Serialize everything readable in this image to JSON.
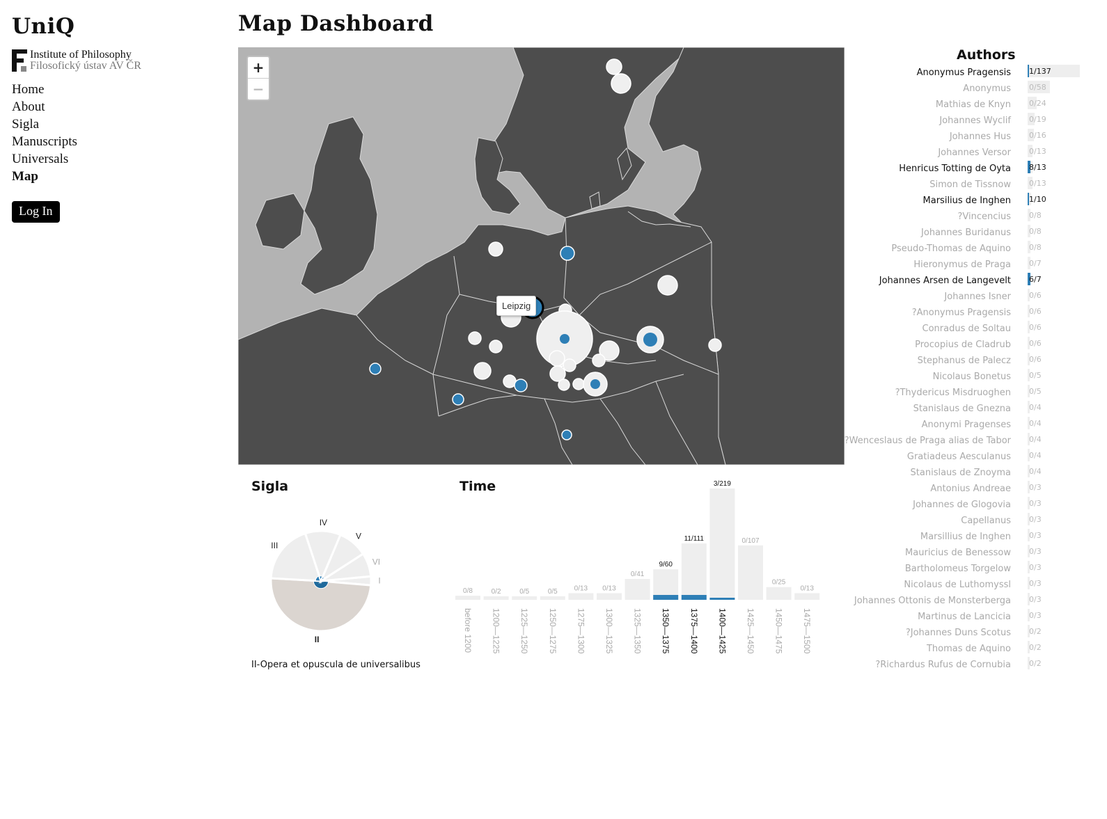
{
  "brand": "UniQ",
  "institute": {
    "line1": "Institute of Philosophy",
    "line2": "Filosofický ústav AV ČR",
    "logo_letter": "F"
  },
  "nav": [
    {
      "label": "Home",
      "active": false
    },
    {
      "label": "About",
      "active": false
    },
    {
      "label": "Sigla",
      "active": false
    },
    {
      "label": "Manuscripts",
      "active": false
    },
    {
      "label": "Universals",
      "active": false
    },
    {
      "label": "Map",
      "active": true
    }
  ],
  "login_label": "Log In",
  "page_title": "Map Dashboard",
  "map": {
    "zoom_in": "+",
    "zoom_out": "−",
    "tooltip": "Leipzig",
    "colors": {
      "land": "#4d4d4d",
      "sea": "#b3b3b3",
      "border": "#d9d9d9",
      "marker": "#efefef",
      "selected": "#2e7fb6"
    }
  },
  "sigla": {
    "title": "Sigla",
    "caption": "II-Opera et opuscula de universalibus",
    "slices": [
      {
        "label": "I",
        "value": 3,
        "selected": 0,
        "active": false
      },
      {
        "label": "II",
        "value": 52,
        "selected": 9,
        "active": true
      },
      {
        "label": "III",
        "value": 20,
        "selected": 3,
        "active": false
      },
      {
        "label": "IV",
        "value": 12,
        "selected": 2,
        "active": false
      },
      {
        "label": "V",
        "value": 10,
        "selected": 1,
        "active": false
      },
      {
        "label": "VI",
        "value": 8,
        "selected": 0,
        "active": false
      }
    ]
  },
  "time": {
    "title": "Time",
    "chart_data": {
      "type": "bar",
      "categories": [
        "before 1200",
        "1200—1225",
        "1225—1250",
        "1250—1275",
        "1275—1300",
        "1300—1325",
        "1325—1350",
        "1350—1375",
        "1375—1400",
        "1400—1425",
        "1425—1450",
        "1450—1475",
        "1475—1500"
      ],
      "series": [
        {
          "values": [
            8,
            2,
            5,
            5,
            13,
            13,
            41,
            60,
            111,
            219,
            107,
            25,
            13
          ]
        },
        {
          "values": [
            0,
            0,
            0,
            0,
            0,
            0,
            0,
            9,
            11,
            3,
            0,
            0,
            0
          ]
        }
      ],
      "labels": [
        "0/8",
        "0/2",
        "0/5",
        "0/5",
        "0/13",
        "0/13",
        "0/41",
        "9/60",
        "11/111",
        "3/219",
        "0/107",
        "0/25",
        "0/13"
      ]
    }
  },
  "authors": {
    "title": "Authors",
    "items": [
      {
        "name": "Anonymus Pragensis",
        "count": "1/137",
        "sel": 1,
        "total": 137
      },
      {
        "name": "Anonymus",
        "count": "0/58",
        "sel": 0,
        "total": 58
      },
      {
        "name": "Mathias de Knyn",
        "count": "0/24",
        "sel": 0,
        "total": 24
      },
      {
        "name": "Johannes Wyclif",
        "count": "0/19",
        "sel": 0,
        "total": 19
      },
      {
        "name": "Johannes Hus",
        "count": "0/16",
        "sel": 0,
        "total": 16
      },
      {
        "name": "Johannes Versor",
        "count": "0/13",
        "sel": 0,
        "total": 13
      },
      {
        "name": "Henricus Totting de Oyta",
        "count": "8/13",
        "sel": 8,
        "total": 13
      },
      {
        "name": "Simon de Tissnow",
        "count": "0/13",
        "sel": 0,
        "total": 13
      },
      {
        "name": "Marsilius de Inghen",
        "count": "1/10",
        "sel": 1,
        "total": 10
      },
      {
        "name": "?Vincencius",
        "count": "0/8",
        "sel": 0,
        "total": 8
      },
      {
        "name": "Johannes Buridanus",
        "count": "0/8",
        "sel": 0,
        "total": 8
      },
      {
        "name": "Pseudo-Thomas de Aquino",
        "count": "0/8",
        "sel": 0,
        "total": 8
      },
      {
        "name": "Hieronymus de Praga",
        "count": "0/7",
        "sel": 0,
        "total": 7
      },
      {
        "name": "Johannes Arsen de Langevelt",
        "count": "6/7",
        "sel": 6,
        "total": 7
      },
      {
        "name": "Johannes Isner",
        "count": "0/6",
        "sel": 0,
        "total": 6
      },
      {
        "name": "?Anonymus Pragensis",
        "count": "0/6",
        "sel": 0,
        "total": 6
      },
      {
        "name": "Conradus de Soltau",
        "count": "0/6",
        "sel": 0,
        "total": 6
      },
      {
        "name": "Procopius de Cladrub",
        "count": "0/6",
        "sel": 0,
        "total": 6
      },
      {
        "name": "Stephanus de Palecz",
        "count": "0/6",
        "sel": 0,
        "total": 6
      },
      {
        "name": "Nicolaus Bonetus",
        "count": "0/5",
        "sel": 0,
        "total": 5
      },
      {
        "name": "?Thydericus Misdruoghen",
        "count": "0/5",
        "sel": 0,
        "total": 5
      },
      {
        "name": "Stanislaus de Gnezna",
        "count": "0/4",
        "sel": 0,
        "total": 4
      },
      {
        "name": "Anonymi Pragenses",
        "count": "0/4",
        "sel": 0,
        "total": 4
      },
      {
        "name": "?Wenceslaus de Praga alias de Tabor",
        "count": "0/4",
        "sel": 0,
        "total": 4
      },
      {
        "name": "Gratiadeus Aesculanus",
        "count": "0/4",
        "sel": 0,
        "total": 4
      },
      {
        "name": "Stanislaus de Znoyma",
        "count": "0/4",
        "sel": 0,
        "total": 4
      },
      {
        "name": "Antonius Andreae",
        "count": "0/3",
        "sel": 0,
        "total": 3
      },
      {
        "name": "Johannes de Glogovia",
        "count": "0/3",
        "sel": 0,
        "total": 3
      },
      {
        "name": "Capellanus",
        "count": "0/3",
        "sel": 0,
        "total": 3
      },
      {
        "name": "Marsillius de Inghen",
        "count": "0/3",
        "sel": 0,
        "total": 3
      },
      {
        "name": "Mauricius de Benessow",
        "count": "0/3",
        "sel": 0,
        "total": 3
      },
      {
        "name": "Bartholomeus Torgelow",
        "count": "0/3",
        "sel": 0,
        "total": 3
      },
      {
        "name": "Nicolaus de Luthomyssl",
        "count": "0/3",
        "sel": 0,
        "total": 3
      },
      {
        "name": "Johannes Ottonis de Monsterberga",
        "count": "0/3",
        "sel": 0,
        "total": 3
      },
      {
        "name": "Martinus de Lancicia",
        "count": "0/3",
        "sel": 0,
        "total": 3
      },
      {
        "name": "?Johannes Duns Scotus",
        "count": "0/2",
        "sel": 0,
        "total": 2
      },
      {
        "name": "Thomas de Aquino",
        "count": "0/2",
        "sel": 0,
        "total": 2
      },
      {
        "name": "?Richardus Rufus de Cornubia",
        "count": "0/2",
        "sel": 0,
        "total": 2
      }
    ]
  }
}
